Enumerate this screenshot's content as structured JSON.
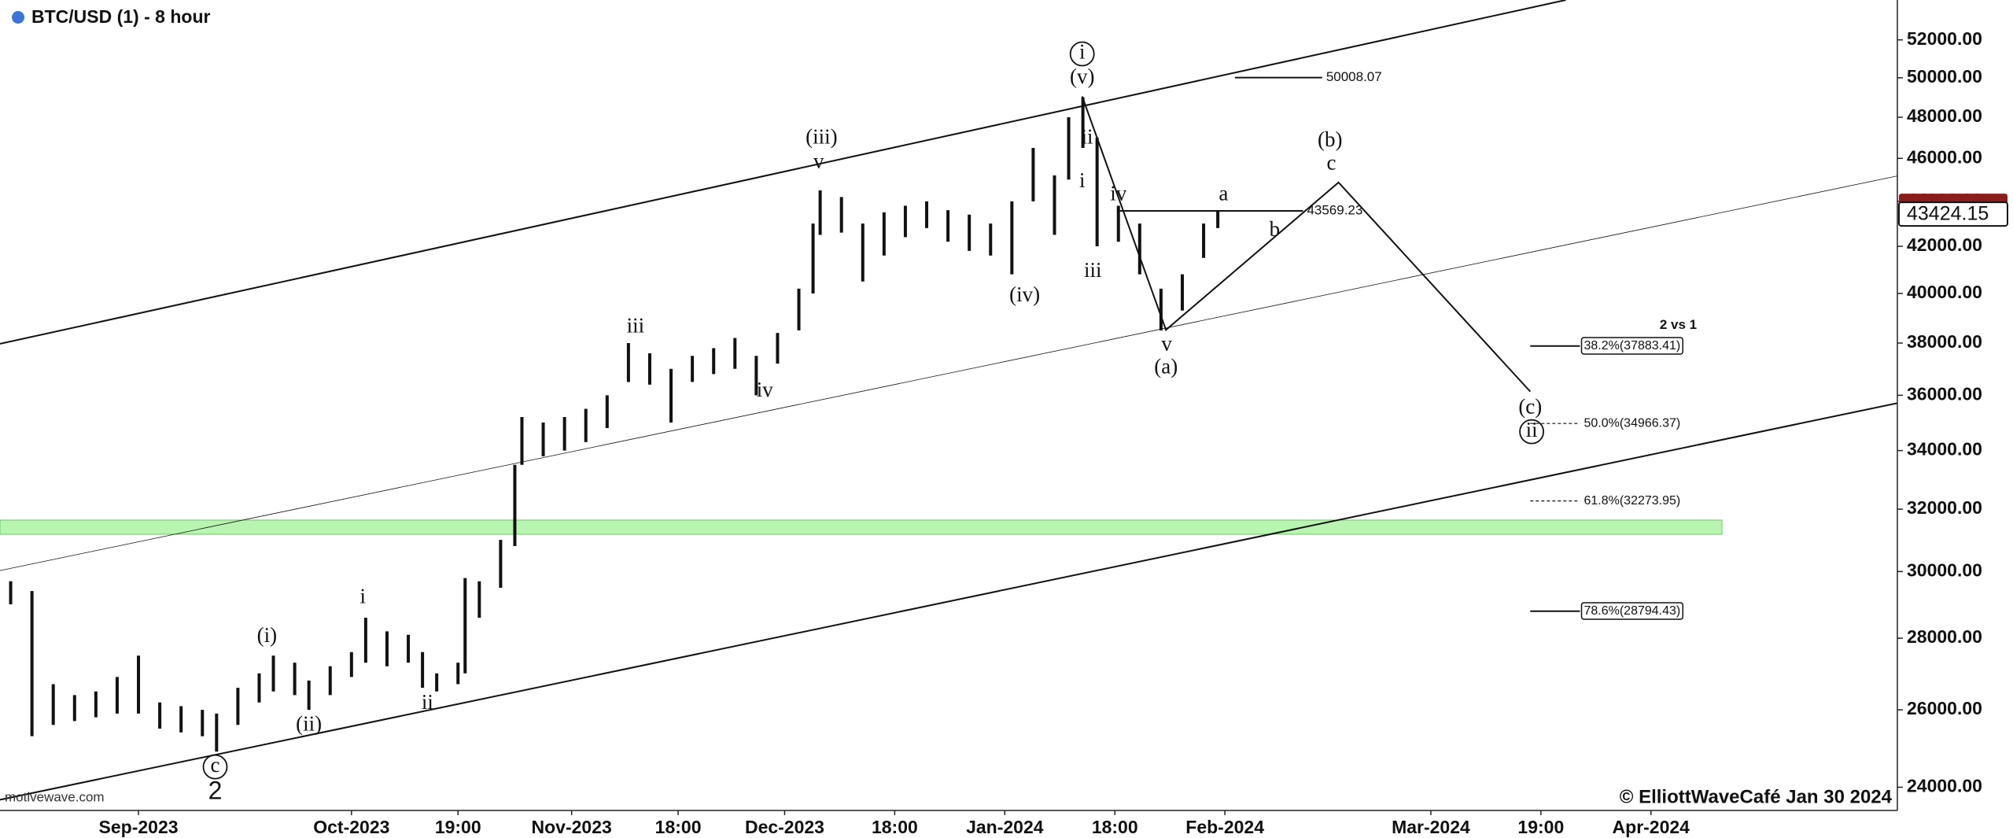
{
  "chart_data": {
    "type": "ohlc",
    "title": "BTC/USD (1) - 8 hour",
    "source": "motivewave.com",
    "credit": "© ElliottWaveCafé Jan 30 2024",
    "log_scale": true,
    "grid": false,
    "color": "#111111",
    "xlim": [
      -19.5,
      247.7
    ],
    "ylim": [
      23430,
      54190
    ],
    "xticks": [
      {
        "value": 0,
        "label": "Sep-2023"
      },
      {
        "value": 30,
        "label": "Oct-2023"
      },
      {
        "value": 45,
        "label": "19:00"
      },
      {
        "value": 61,
        "label": "Nov-2023"
      },
      {
        "value": 76,
        "label": "18:00"
      },
      {
        "value": 91,
        "label": "Dec-2023"
      },
      {
        "value": 106.5,
        "label": "18:00"
      },
      {
        "value": 122,
        "label": "Jan-2024"
      },
      {
        "value": 137.5,
        "label": "18:00"
      },
      {
        "value": 153,
        "label": "Feb-2024"
      },
      {
        "value": 182,
        "label": "Mar-2024"
      },
      {
        "value": 197.5,
        "label": "19:00"
      },
      {
        "value": 213,
        "label": "Apr-2024"
      }
    ],
    "yticks": [
      {
        "value": 24000,
        "label": "24000.00"
      },
      {
        "value": 26000,
        "label": "26000.00"
      },
      {
        "value": 28000,
        "label": "28000.00"
      },
      {
        "value": 30000,
        "label": "30000.00"
      },
      {
        "value": 32000,
        "label": "32000.00"
      },
      {
        "value": 34000,
        "label": "34000.00"
      },
      {
        "value": 36000,
        "label": "36000.00"
      },
      {
        "value": 38000,
        "label": "38000.00"
      },
      {
        "value": 40000,
        "label": "40000.00"
      },
      {
        "value": 42000,
        "label": "42000.00"
      },
      {
        "value": 44000,
        "label": "44000.00"
      },
      {
        "value": 46000,
        "label": "46000.00"
      },
      {
        "value": 48000,
        "label": "48000.00"
      },
      {
        "value": 50000,
        "label": "50000.00"
      },
      {
        "value": 52000,
        "label": "52000.00"
      }
    ],
    "x": [
      -18,
      -15,
      -12,
      -9,
      -6,
      -3,
      0,
      3,
      6,
      9,
      11,
      14,
      17,
      19,
      22,
      24,
      27,
      30,
      32,
      35,
      38,
      40,
      42,
      45,
      46,
      48,
      51,
      53,
      54,
      57,
      60,
      63,
      66,
      69,
      72,
      75,
      78,
      81,
      84,
      87,
      90,
      93,
      95,
      96,
      99,
      102,
      105,
      108,
      111,
      114,
      117,
      120,
      123,
      126,
      129,
      131,
      133,
      135,
      138,
      141,
      144,
      147,
      150,
      152
    ],
    "high": [
      29700,
      29400,
      26700,
      26400,
      26500,
      26900,
      27500,
      26200,
      26100,
      26000,
      25900,
      26600,
      27000,
      27500,
      27300,
      26800,
      27200,
      27600,
      28600,
      28200,
      28100,
      27600,
      27000,
      27300,
      29800,
      29700,
      31000,
      33500,
      35200,
      35000,
      35200,
      35500,
      36000,
      38000,
      37600,
      37000,
      37500,
      37800,
      38200,
      37500,
      38400,
      40200,
      43000,
      44500,
      44200,
      43000,
      43500,
      43800,
      44000,
      43600,
      43400,
      43000,
      44000,
      46500,
      45200,
      48000,
      49000,
      47000,
      43800,
      43000,
      40200,
      40800,
      43000,
      43600
    ],
    "low": [
      29000,
      25300,
      25600,
      25700,
      25800,
      25900,
      25900,
      25500,
      25400,
      25300,
      24900,
      25600,
      26200,
      26500,
      26400,
      26000,
      26400,
      26900,
      27300,
      27200,
      27300,
      26600,
      26500,
      26700,
      27000,
      28600,
      29500,
      30800,
      33500,
      33800,
      34000,
      34300,
      34800,
      36500,
      36400,
      35000,
      36500,
      36800,
      37000,
      36000,
      37200,
      38500,
      40000,
      42500,
      42600,
      40500,
      41600,
      42400,
      42800,
      42200,
      41800,
      41600,
      40800,
      44000,
      42500,
      45000,
      46500,
      42000,
      42200,
      40800,
      38500,
      39300,
      41500,
      42800
    ],
    "last_price": 43424.15,
    "trend_lines": [
      {
        "x": [
          -19.5,
          201
        ],
        "y": [
          37970,
          54190
        ],
        "width": 2
      },
      {
        "x": [
          -19.5,
          247.7
        ],
        "y": [
          30030,
          45170
        ],
        "width": 0.8
      },
      {
        "x": [
          -19.5,
          247.7
        ],
        "y": [
          23690,
          35710
        ],
        "width": 2
      }
    ],
    "wave_path": {
      "x": [
        132.9,
        144.7,
        169,
        196
      ],
      "y": [
        49050,
        38520,
        44870,
        36140
      ]
    },
    "zone": {
      "x": [
        -19.5,
        223
      ],
      "y": [
        31180,
        31640
      ],
      "color": "#b8f5b0"
    },
    "levels": [
      {
        "x": [
          138.2,
          164
        ],
        "value": 43569.23
      },
      {
        "x": [
          154.4,
          166.7
        ],
        "value": 50008.07
      }
    ],
    "fib_title": "2 vs 1",
    "fibs": [
      {
        "label": "38.2%(37883.41)",
        "value": 37883.41,
        "style": "box"
      },
      {
        "label": "50.0%(34966.37)",
        "value": 34966.37,
        "style": "dashed"
      },
      {
        "label": "61.8%(32273.95)",
        "value": 32273.95,
        "style": "dashed"
      },
      {
        "label": "78.6%(28794.43)",
        "value": 28794.43,
        "style": "box"
      }
    ],
    "fib_x": [
      196,
      203
    ],
    "annotations": [
      {
        "text": "i",
        "x": 132.9,
        "y": 51250,
        "circled": true
      },
      {
        "text": "(v)",
        "x": 132.9,
        "y": 49970
      },
      {
        "text": "(iii)",
        "x": 96.2,
        "y": 46950
      },
      {
        "text": "v",
        "x": 95.8,
        "y": 45780
      },
      {
        "text": "iii",
        "x": 70,
        "y": 38620
      },
      {
        "text": "iv",
        "x": 88.2,
        "y": 36140
      },
      {
        "text": "(iv)",
        "x": 124.8,
        "y": 39870
      },
      {
        "text": "ii",
        "x": 133.6,
        "y": 46950
      },
      {
        "text": "i",
        "x": 132.9,
        "y": 44870
      },
      {
        "text": "iii",
        "x": 134.4,
        "y": 40890
      },
      {
        "text": "iv",
        "x": 138,
        "y": 44280
      },
      {
        "text": "v",
        "x": 144.8,
        "y": 37900
      },
      {
        "text": "(a)",
        "x": 144.7,
        "y": 37010
      },
      {
        "text": "a",
        "x": 152.8,
        "y": 44280
      },
      {
        "text": "b",
        "x": 160,
        "y": 42660
      },
      {
        "text": "(b)",
        "x": 167.8,
        "y": 46820
      },
      {
        "text": "c",
        "x": 168,
        "y": 45710
      },
      {
        "text": "(c)",
        "x": 196,
        "y": 35510
      },
      {
        "text": "ii",
        "x": 196.2,
        "y": 34670,
        "circled": true
      },
      {
        "text": "i",
        "x": 31.6,
        "y": 29180
      },
      {
        "text": "(i)",
        "x": 18.1,
        "y": 28030
      },
      {
        "text": "(ii)",
        "x": 24,
        "y": 25580
      },
      {
        "text": "ii",
        "x": 40.7,
        "y": 26160
      },
      {
        "text": "c",
        "x": 10.8,
        "y": 24510,
        "circled": true
      },
      {
        "text": "2",
        "x": 10.8,
        "y": 23870,
        "big": true
      }
    ]
  }
}
